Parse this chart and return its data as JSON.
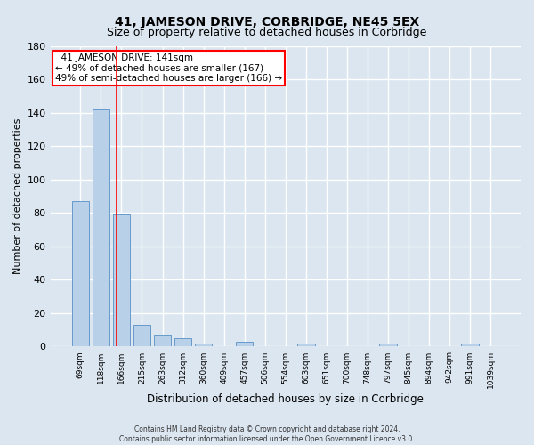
{
  "title": "41, JAMESON DRIVE, CORBRIDGE, NE45 5EX",
  "subtitle": "Size of property relative to detached houses in Corbridge",
  "xlabel": "Distribution of detached houses by size in Corbridge",
  "ylabel": "Number of detached properties",
  "footer_line1": "Contains HM Land Registry data © Crown copyright and database right 2024.",
  "footer_line2": "Contains public sector information licensed under the Open Government Licence v3.0.",
  "bin_labels": [
    "69sqm",
    "118sqm",
    "166sqm",
    "215sqm",
    "263sqm",
    "312sqm",
    "360sqm",
    "409sqm",
    "457sqm",
    "506sqm",
    "554sqm",
    "603sqm",
    "651sqm",
    "700sqm",
    "748sqm",
    "797sqm",
    "845sqm",
    "894sqm",
    "942sqm",
    "991sqm",
    "1039sqm"
  ],
  "bar_values": [
    87,
    142,
    79,
    13,
    7,
    5,
    2,
    0,
    3,
    0,
    0,
    2,
    0,
    0,
    0,
    2,
    0,
    0,
    0,
    2,
    0
  ],
  "bar_color": "#b8d0e8",
  "bar_edge_color": "#6699cc",
  "red_line_x": 1.75,
  "annotation_line1": "  41 JAMESON DRIVE: 141sqm  ",
  "annotation_line2": "← 49% of detached houses are smaller (167)",
  "annotation_line3": "49% of semi-detached houses are larger (166) →",
  "annotation_box_color": "white",
  "annotation_box_edgecolor": "red",
  "annotation_fontsize": 7.5,
  "ylim": [
    0,
    180
  ],
  "yticks": [
    0,
    20,
    40,
    60,
    80,
    100,
    120,
    140,
    160,
    180
  ],
  "bg_color": "#dce6f0",
  "plot_bg_color": "#dce6f0",
  "grid_color": "white",
  "title_fontsize": 10,
  "subtitle_fontsize": 9,
  "ylabel_fontsize": 8,
  "xlabel_fontsize": 8.5,
  "bar_width": 0.85
}
